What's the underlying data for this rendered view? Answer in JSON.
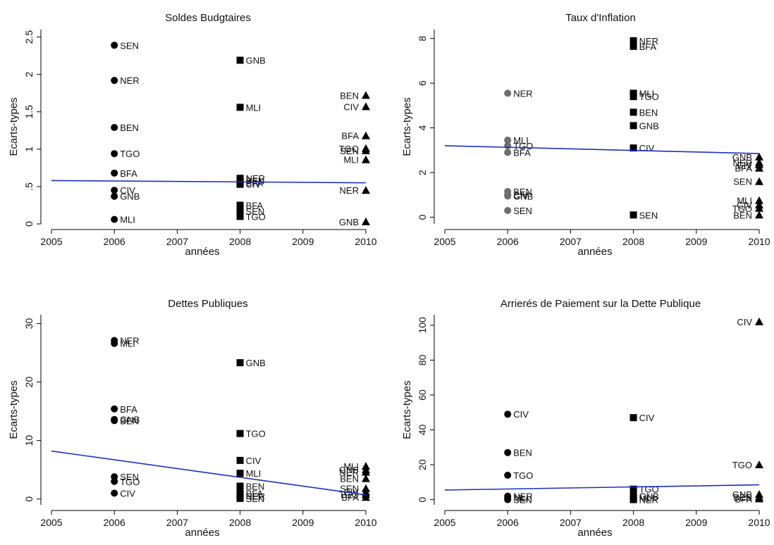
{
  "chart_data": [
    {
      "type": "scatter",
      "title": "Soldes Budgtaires",
      "xlabel": "années",
      "ylabel": "Ecarts-types",
      "xlim": [
        2005,
        2010
      ],
      "ylim": [
        0,
        2.6
      ],
      "xticks": [
        "2005",
        "2006",
        "2007",
        "2008",
        "2009",
        "2010"
      ],
      "yticks": [
        {
          "v": 0,
          "label": "0"
        },
        {
          "v": 0.5,
          "label": ".5"
        },
        {
          "v": 1,
          "label": "1"
        },
        {
          "v": 1.5,
          "label": "1.5"
        },
        {
          "v": 2,
          "label": "2"
        },
        {
          "v": 2.5,
          "label": "2.5"
        }
      ],
      "trend": [
        [
          2005,
          0.58
        ],
        [
          2010,
          0.55
        ]
      ],
      "points": [
        {
          "x": 2006,
          "y": 2.39,
          "label": "SEN",
          "marker": "circle"
        },
        {
          "x": 2006,
          "y": 1.92,
          "label": "NER",
          "marker": "circle"
        },
        {
          "x": 2006,
          "y": 1.29,
          "label": "BEN",
          "marker": "circle"
        },
        {
          "x": 2006,
          "y": 0.94,
          "label": "TGO",
          "marker": "circle"
        },
        {
          "x": 2006,
          "y": 0.68,
          "label": "BFA",
          "marker": "circle"
        },
        {
          "x": 2006,
          "y": 0.45,
          "label": "CIV",
          "marker": "circle"
        },
        {
          "x": 2006,
          "y": 0.37,
          "label": "GNB",
          "marker": "circle"
        },
        {
          "x": 2006,
          "y": 0.06,
          "label": "MLI",
          "marker": "circle"
        },
        {
          "x": 2008,
          "y": 2.19,
          "label": "GNB",
          "marker": "square"
        },
        {
          "x": 2008,
          "y": 1.56,
          "label": "MLI",
          "marker": "square"
        },
        {
          "x": 2008,
          "y": 0.61,
          "label": "NER",
          "marker": "square"
        },
        {
          "x": 2008,
          "y": 0.58,
          "label": "BEN",
          "marker": "square"
        },
        {
          "x": 2008,
          "y": 0.55,
          "label": "BFA",
          "marker": "square"
        },
        {
          "x": 2008,
          "y": 0.53,
          "label": "CIV",
          "marker": "square"
        },
        {
          "x": 2008,
          "y": 0.25,
          "label": "BFA",
          "marker": "square"
        },
        {
          "x": 2008,
          "y": 0.17,
          "label": "SEN",
          "marker": "square"
        },
        {
          "x": 2008,
          "y": 0.1,
          "label": "TGO",
          "marker": "square"
        },
        {
          "x": 2010,
          "y": 1.72,
          "label": "BEN",
          "marker": "triangle",
          "side": "left"
        },
        {
          "x": 2010,
          "y": 1.57,
          "label": "CIV",
          "marker": "triangle",
          "side": "left"
        },
        {
          "x": 2010,
          "y": 1.18,
          "label": "BFA",
          "marker": "triangle",
          "side": "left"
        },
        {
          "x": 2010,
          "y": 1.01,
          "label": "TGO",
          "marker": "triangle",
          "side": "left"
        },
        {
          "x": 2010,
          "y": 0.98,
          "label": "SEN",
          "marker": "triangle",
          "side": "left"
        },
        {
          "x": 2010,
          "y": 0.86,
          "label": "MLI",
          "marker": "triangle",
          "side": "left"
        },
        {
          "x": 2010,
          "y": 0.45,
          "label": "NER",
          "marker": "triangle",
          "side": "left"
        },
        {
          "x": 2010,
          "y": 0.03,
          "label": "GNB",
          "marker": "triangle",
          "side": "left"
        }
      ]
    },
    {
      "type": "scatter",
      "title": "Taux d'Inflation",
      "xlabel": "années",
      "ylabel": "Ecarts-types",
      "xlim": [
        2005,
        2010
      ],
      "ylim": [
        -0.3,
        8.4
      ],
      "xticks": [
        "2005",
        "2006",
        "2007",
        "2008",
        "2009",
        "2010"
      ],
      "yticks": [
        {
          "v": 0,
          "label": "0"
        },
        {
          "v": 2,
          "label": "2"
        },
        {
          "v": 4,
          "label": "4"
        },
        {
          "v": 6,
          "label": "6"
        },
        {
          "v": 8,
          "label": "8"
        }
      ],
      "trend": [
        [
          2005,
          3.2
        ],
        [
          2010,
          2.85
        ]
      ],
      "points": [
        {
          "x": 2006,
          "y": 5.55,
          "label": "NER",
          "marker": "circle",
          "gray": true
        },
        {
          "x": 2006,
          "y": 3.45,
          "label": "MLI",
          "marker": "circle",
          "gray": true
        },
        {
          "x": 2006,
          "y": 3.2,
          "label": "TGO",
          "marker": "circle",
          "gray": true
        },
        {
          "x": 2006,
          "y": 2.9,
          "label": "BFA",
          "marker": "circle",
          "gray": true
        },
        {
          "x": 2006,
          "y": 1.15,
          "label": "BEN",
          "marker": "circle",
          "gray": true
        },
        {
          "x": 2006,
          "y": 1.0,
          "label": "CIV",
          "marker": "circle",
          "gray": true
        },
        {
          "x": 2006,
          "y": 0.95,
          "label": "GNB",
          "marker": "circle",
          "gray": true
        },
        {
          "x": 2006,
          "y": 0.3,
          "label": "SEN",
          "marker": "circle",
          "gray": true
        },
        {
          "x": 2008,
          "y": 7.9,
          "label": "NER",
          "marker": "square"
        },
        {
          "x": 2008,
          "y": 7.65,
          "label": "BFA",
          "marker": "square"
        },
        {
          "x": 2008,
          "y": 5.55,
          "label": "MLI",
          "marker": "square"
        },
        {
          "x": 2008,
          "y": 5.4,
          "label": "TGO",
          "marker": "square"
        },
        {
          "x": 2008,
          "y": 4.7,
          "label": "BEN",
          "marker": "square"
        },
        {
          "x": 2008,
          "y": 4.1,
          "label": "GNB",
          "marker": "square"
        },
        {
          "x": 2008,
          "y": 3.1,
          "label": "CIV",
          "marker": "square"
        },
        {
          "x": 2008,
          "y": 0.1,
          "label": "SEN",
          "marker": "square"
        },
        {
          "x": 2010,
          "y": 2.7,
          "label": "GNB",
          "marker": "triangle",
          "side": "left"
        },
        {
          "x": 2010,
          "y": 2.45,
          "label": "NER",
          "marker": "triangle",
          "side": "left"
        },
        {
          "x": 2010,
          "y": 2.35,
          "label": "CIV",
          "marker": "triangle",
          "side": "left"
        },
        {
          "x": 2010,
          "y": 2.2,
          "label": "BFA",
          "marker": "triangle",
          "side": "left"
        },
        {
          "x": 2010,
          "y": 1.6,
          "label": "SEN",
          "marker": "triangle",
          "side": "left"
        },
        {
          "x": 2010,
          "y": 0.75,
          "label": "MLI",
          "marker": "triangle",
          "side": "left"
        },
        {
          "x": 2010,
          "y": 0.55,
          "label": "CIV",
          "marker": "triangle",
          "side": "left"
        },
        {
          "x": 2010,
          "y": 0.4,
          "label": "TGO",
          "marker": "triangle",
          "side": "left"
        },
        {
          "x": 2010,
          "y": 0.1,
          "label": "BEN",
          "marker": "triangle",
          "side": "left"
        }
      ]
    },
    {
      "type": "scatter",
      "title": "Dettes Publiques",
      "xlabel": "années",
      "ylabel": "Ecarts-types",
      "xlim": [
        2005,
        2010
      ],
      "ylim": [
        -1,
        31.5
      ],
      "xticks": [
        "2005",
        "2006",
        "2007",
        "2008",
        "2009",
        "2010"
      ],
      "yticks": [
        {
          "v": 0,
          "label": "0"
        },
        {
          "v": 10,
          "label": "10"
        },
        {
          "v": 20,
          "label": "20"
        },
        {
          "v": 30,
          "label": "30"
        }
      ],
      "trend": [
        [
          2005,
          8.2
        ],
        [
          2010,
          0.7
        ]
      ],
      "points": [
        {
          "x": 2006,
          "y": 27.1,
          "label": "NER",
          "marker": "circle"
        },
        {
          "x": 2006,
          "y": 26.6,
          "label": "MLI",
          "marker": "circle"
        },
        {
          "x": 2006,
          "y": 15.4,
          "label": "BFA",
          "marker": "circle"
        },
        {
          "x": 2006,
          "y": 13.6,
          "label": "GNB",
          "marker": "circle"
        },
        {
          "x": 2006,
          "y": 13.4,
          "label": "BEN",
          "marker": "circle"
        },
        {
          "x": 2006,
          "y": 3.8,
          "label": "SEN",
          "marker": "circle"
        },
        {
          "x": 2006,
          "y": 3.0,
          "label": "TGO",
          "marker": "circle"
        },
        {
          "x": 2006,
          "y": 1.0,
          "label": "CIV",
          "marker": "circle"
        },
        {
          "x": 2008,
          "y": 23.3,
          "label": "GNB",
          "marker": "square"
        },
        {
          "x": 2008,
          "y": 11.2,
          "label": "TGO",
          "marker": "square"
        },
        {
          "x": 2008,
          "y": 6.6,
          "label": "CIV",
          "marker": "square"
        },
        {
          "x": 2008,
          "y": 4.4,
          "label": "MLI",
          "marker": "square"
        },
        {
          "x": 2008,
          "y": 2.2,
          "label": "BEN",
          "marker": "square"
        },
        {
          "x": 2008,
          "y": 1.0,
          "label": "BFA",
          "marker": "square"
        },
        {
          "x": 2008,
          "y": 0.5,
          "label": "NER",
          "marker": "square"
        },
        {
          "x": 2008,
          "y": 0.1,
          "label": "SEN",
          "marker": "square"
        },
        {
          "x": 2010,
          "y": 5.6,
          "label": "MLI",
          "marker": "triangle",
          "side": "left"
        },
        {
          "x": 2010,
          "y": 5.0,
          "label": "GNB",
          "marker": "triangle",
          "side": "left"
        },
        {
          "x": 2010,
          "y": 4.6,
          "label": "NER",
          "marker": "triangle",
          "side": "left"
        },
        {
          "x": 2010,
          "y": 3.5,
          "label": "BEN",
          "marker": "triangle",
          "side": "left"
        },
        {
          "x": 2010,
          "y": 1.8,
          "label": "SEN",
          "marker": "triangle",
          "side": "left"
        },
        {
          "x": 2010,
          "y": 1.2,
          "label": "CIV",
          "marker": "triangle",
          "side": "left"
        },
        {
          "x": 2010,
          "y": 0.8,
          "label": "TGO",
          "marker": "triangle",
          "side": "left"
        },
        {
          "x": 2010,
          "y": 0.3,
          "label": "BFA",
          "marker": "triangle",
          "side": "left"
        }
      ]
    },
    {
      "type": "scatter",
      "title": "Arrierés de Paiement sur la Dette Publique",
      "xlabel": "années",
      "ylabel": "Ecarts-types",
      "xlim": [
        2005,
        2010
      ],
      "ylim": [
        -3,
        106
      ],
      "xticks": [
        "2005",
        "2006",
        "2007",
        "2008",
        "2009",
        "2010"
      ],
      "yticks": [
        {
          "v": 0,
          "label": "0"
        },
        {
          "v": 20,
          "label": "20"
        },
        {
          "v": 40,
          "label": "40"
        },
        {
          "v": 60,
          "label": "60"
        },
        {
          "v": 80,
          "label": "80"
        },
        {
          "v": 100,
          "label": "100"
        }
      ],
      "trend": [
        [
          2005,
          5.5
        ],
        [
          2010,
          8.5
        ]
      ],
      "points": [
        {
          "x": 2006,
          "y": 49,
          "label": "CIV",
          "marker": "circle"
        },
        {
          "x": 2006,
          "y": 27,
          "label": "BEN",
          "marker": "circle"
        },
        {
          "x": 2006,
          "y": 14,
          "label": "TGO",
          "marker": "circle"
        },
        {
          "x": 2006,
          "y": 2,
          "label": "NER",
          "marker": "circle"
        },
        {
          "x": 2006,
          "y": 1,
          "label": "MLI",
          "marker": "circle"
        },
        {
          "x": 2006,
          "y": 0,
          "label": "SEN",
          "marker": "circle"
        },
        {
          "x": 2008,
          "y": 47,
          "label": "CIV",
          "marker": "square"
        },
        {
          "x": 2008,
          "y": 6,
          "label": "TGO",
          "marker": "square"
        },
        {
          "x": 2008,
          "y": 2,
          "label": "GNB",
          "marker": "square"
        },
        {
          "x": 2008,
          "y": 1,
          "label": "MLI",
          "marker": "square"
        },
        {
          "x": 2008,
          "y": 0,
          "label": "NER",
          "marker": "square"
        },
        {
          "x": 2010,
          "y": 102,
          "label": "CIV",
          "marker": "triangle",
          "side": "left"
        },
        {
          "x": 2010,
          "y": 20,
          "label": "TGO",
          "marker": "triangle",
          "side": "left"
        },
        {
          "x": 2010,
          "y": 3,
          "label": "GNB",
          "marker": "triangle",
          "side": "left"
        },
        {
          "x": 2010,
          "y": 1.5,
          "label": "BEN",
          "marker": "triangle",
          "side": "left"
        },
        {
          "x": 2010,
          "y": 0.5,
          "label": "BFA",
          "marker": "triangle",
          "side": "left"
        }
      ]
    }
  ],
  "colors": {
    "marker": "#000000",
    "marker_gray": "#6e6e6e",
    "trend": "#1d2fc4",
    "text": "#111111"
  }
}
